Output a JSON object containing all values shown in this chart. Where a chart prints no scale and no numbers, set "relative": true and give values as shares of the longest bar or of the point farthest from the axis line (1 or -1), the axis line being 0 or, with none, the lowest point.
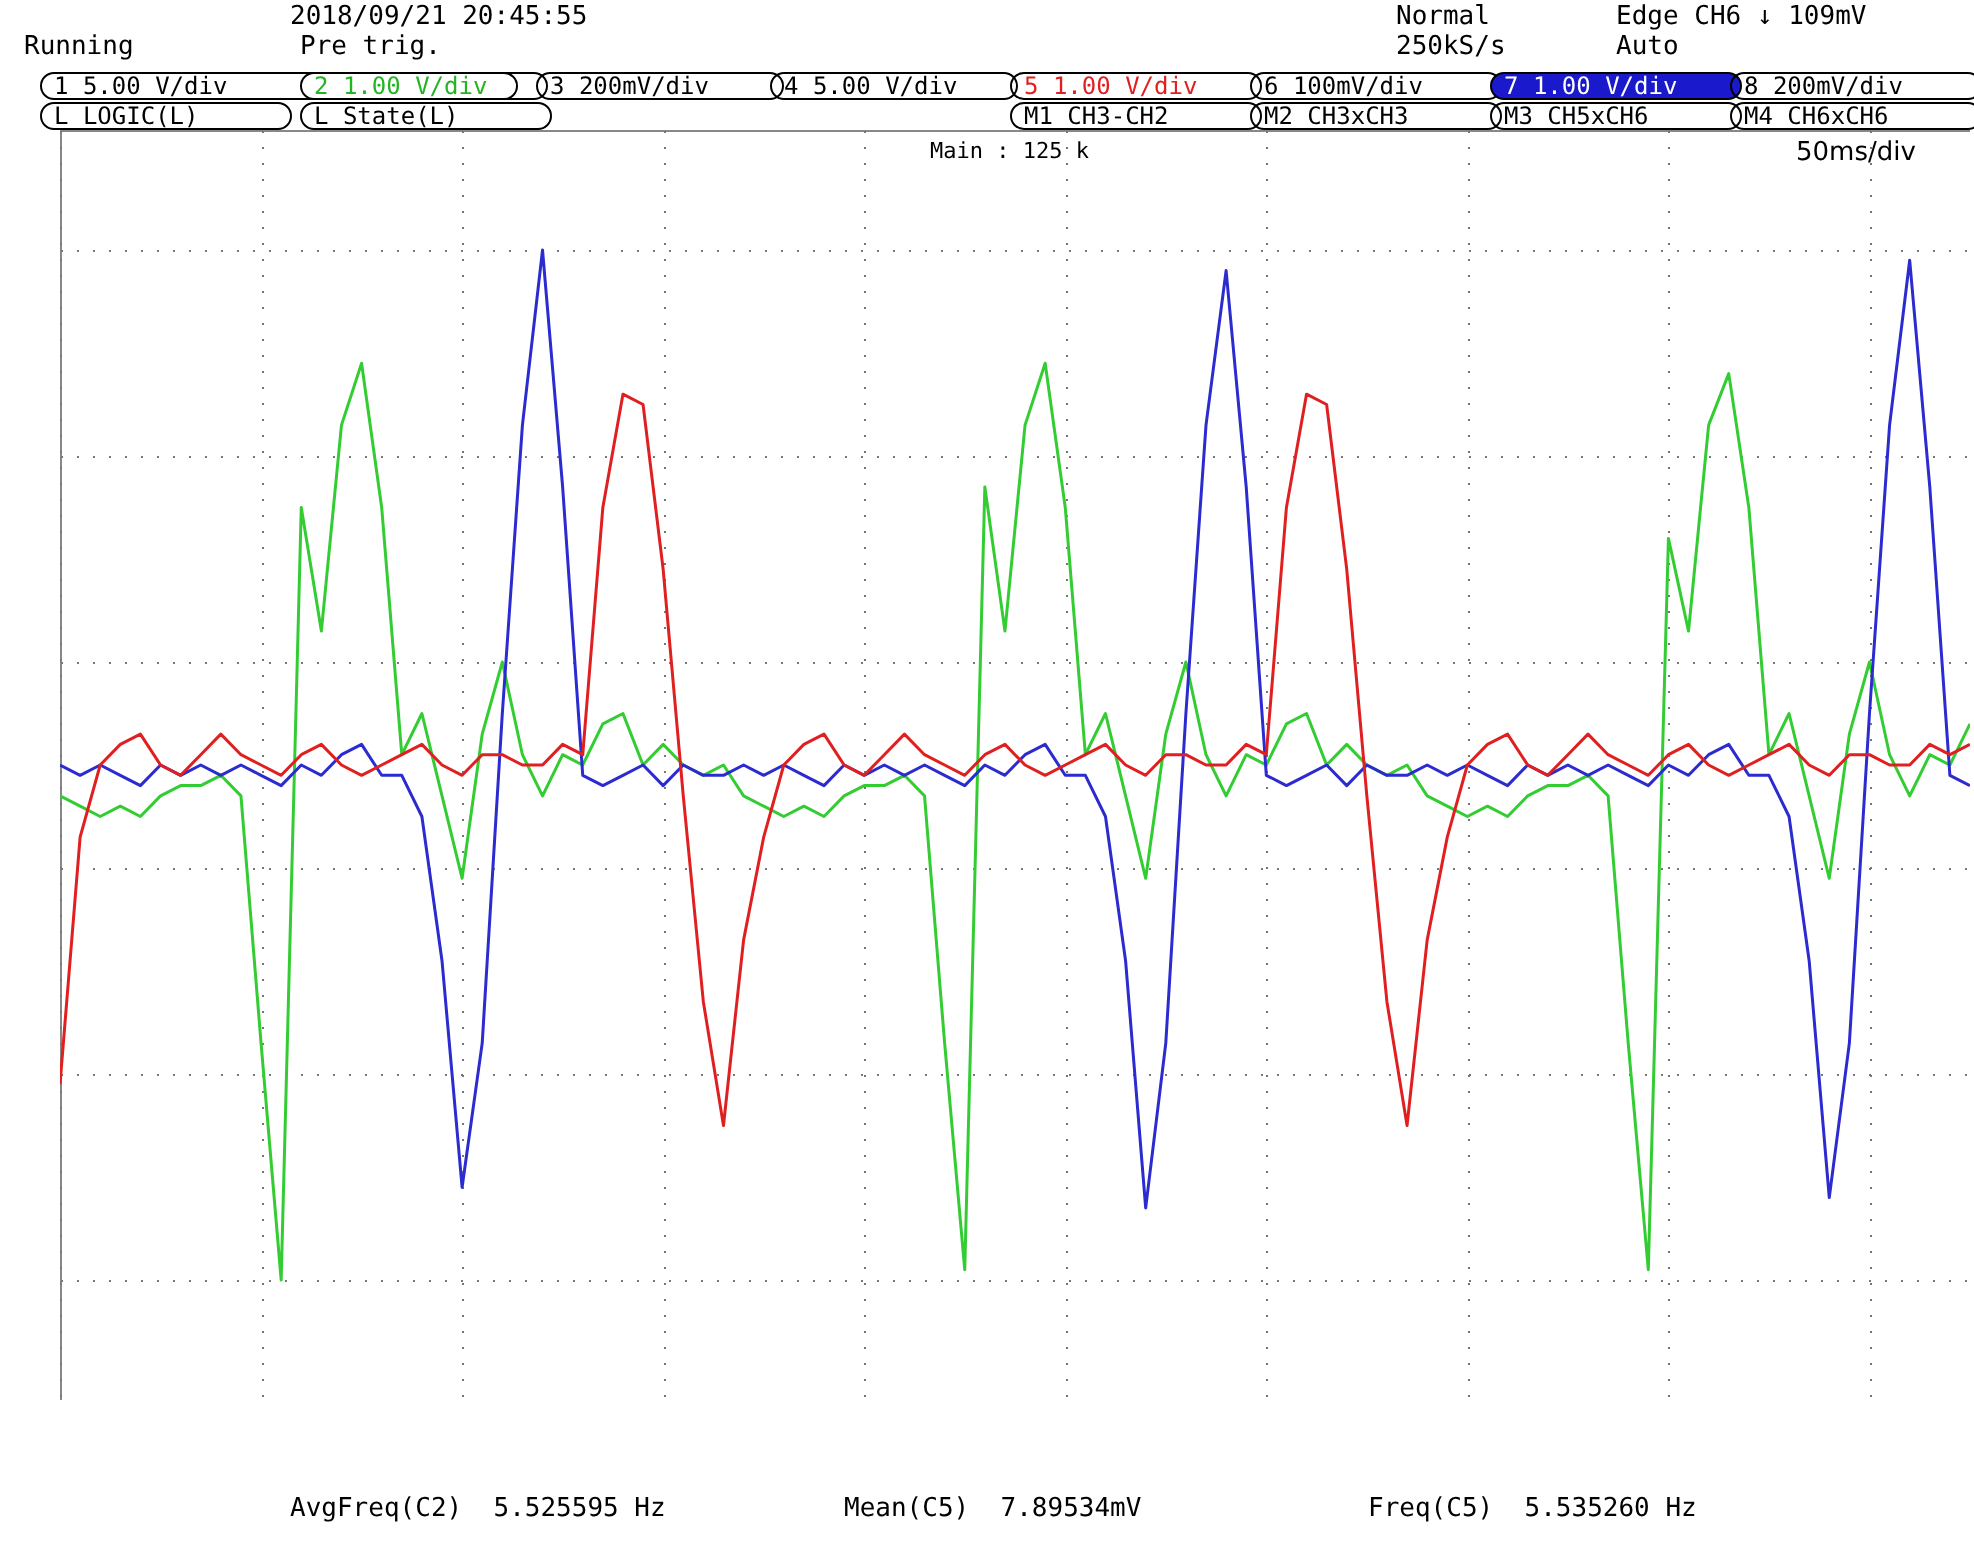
{
  "chart_data": {
    "type": "line",
    "relative": true,
    "grid": true,
    "categories": [
      null,
      null,
      null,
      null,
      null,
      null,
      null,
      null,
      null,
      null,
      null,
      null,
      null,
      null,
      null,
      null,
      null,
      null,
      null,
      null,
      null,
      null,
      null,
      null,
      null,
      null,
      null,
      null,
      null,
      null,
      null,
      null,
      null,
      null,
      null,
      null,
      null,
      null,
      null,
      null,
      null,
      null,
      null,
      null,
      null,
      null,
      null,
      null,
      null,
      null,
      null,
      null,
      null,
      null,
      null,
      null,
      null,
      null,
      null,
      null,
      null,
      null,
      null,
      null,
      null,
      null,
      null,
      null,
      null,
      null,
      null,
      null,
      null,
      null,
      null,
      null,
      null,
      null,
      null,
      null,
      null,
      null,
      null,
      null,
      null,
      null,
      null,
      null,
      null,
      null,
      null,
      null,
      null,
      null,
      null,
      null
    ],
    "series": [
      {
        "color": "#33cc33",
        "values": [
          0.47,
          0.46,
          0.45,
          0.46,
          0.45,
          0.47,
          0.48,
          0.48,
          0.49,
          0.47,
          0.23,
          0,
          0.75,
          0.63,
          0.83,
          0.89,
          0.75,
          0.51,
          0.55,
          0.47,
          0.39,
          0.53,
          0.6,
          0.51,
          0.47,
          0.51,
          0.5,
          0.54,
          0.55,
          0.5,
          0.52,
          0.5,
          0.49,
          0.5,
          0.47,
          0.46,
          0.45,
          0.46,
          0.45,
          0.47,
          0.48,
          0.48,
          0.49,
          0.47,
          0.23,
          0.01,
          0.77,
          0.63,
          0.83,
          0.89,
          0.75,
          0.51,
          0.55,
          0.47,
          0.39,
          0.53,
          0.6,
          0.51,
          0.47,
          0.51,
          0.5,
          0.54,
          0.55,
          0.5,
          0.52,
          0.5,
          0.49,
          0.5,
          0.47,
          0.46,
          0.45,
          0.46,
          0.45,
          0.47,
          0.48,
          0.48,
          0.49,
          0.47,
          0.23,
          0.01,
          0.72,
          0.63,
          0.83,
          0.88,
          0.75,
          0.51,
          0.55,
          0.47,
          0.39,
          0.53,
          0.6,
          0.51,
          0.47,
          0.51,
          0.5,
          0.54
        ]
      },
      {
        "color": "#2b2bd0",
        "values": [
          0.5,
          0.49,
          0.5,
          0.49,
          0.48,
          0.5,
          0.49,
          0.5,
          0.49,
          0.5,
          0.49,
          0.48,
          0.5,
          0.49,
          0.51,
          0.52,
          0.49,
          0.49,
          0.45,
          0.31,
          0.09,
          0.23,
          0.55,
          0.83,
          1,
          0.77,
          0.49,
          0.48,
          0.49,
          0.5,
          0.48,
          0.5,
          0.49,
          0.49,
          0.5,
          0.49,
          0.5,
          0.49,
          0.48,
          0.5,
          0.49,
          0.5,
          0.49,
          0.5,
          0.49,
          0.48,
          0.5,
          0.49,
          0.51,
          0.52,
          0.49,
          0.49,
          0.45,
          0.31,
          0.07,
          0.23,
          0.55,
          0.83,
          0.98,
          0.77,
          0.49,
          0.48,
          0.49,
          0.5,
          0.48,
          0.5,
          0.49,
          0.49,
          0.5,
          0.49,
          0.5,
          0.49,
          0.48,
          0.5,
          0.49,
          0.5,
          0.49,
          0.5,
          0.49,
          0.48,
          0.5,
          0.49,
          0.51,
          0.52,
          0.49,
          0.49,
          0.45,
          0.31,
          0.08,
          0.23,
          0.55,
          0.83,
          0.99,
          0.77,
          0.49,
          0.48
        ]
      },
      {
        "color": "#e02020",
        "values": [
          0.19,
          0.43,
          0.5,
          0.52,
          0.53,
          0.5,
          0.49,
          0.51,
          0.53,
          0.51,
          0.5,
          0.49,
          0.51,
          0.52,
          0.5,
          0.49,
          0.5,
          0.51,
          0.52,
          0.5,
          0.49,
          0.51,
          0.51,
          0.5,
          0.5,
          0.52,
          0.51,
          0.75,
          0.86,
          0.85,
          0.69,
          0.47,
          0.27,
          0.15,
          0.33,
          0.43,
          0.5,
          0.52,
          0.53,
          0.5,
          0.49,
          0.51,
          0.53,
          0.51,
          0.5,
          0.49,
          0.51,
          0.52,
          0.5,
          0.49,
          0.5,
          0.51,
          0.52,
          0.5,
          0.49,
          0.51,
          0.51,
          0.5,
          0.5,
          0.52,
          0.51,
          0.75,
          0.86,
          0.85,
          0.69,
          0.47,
          0.27,
          0.15,
          0.33,
          0.43,
          0.5,
          0.52,
          0.53,
          0.5,
          0.49,
          0.51,
          0.53,
          0.51,
          0.5,
          0.49,
          0.51,
          0.52,
          0.5,
          0.49,
          0.5,
          0.51,
          0.52,
          0.5,
          0.49,
          0.51,
          0.51,
          0.5,
          0.5,
          0.52,
          0.51,
          0.52
        ]
      }
    ],
    "annotations": [
      "2018/09/21 20:45:55",
      "Running",
      "Pre trig.",
      "Normal",
      "250kS/s",
      "Edge CH6 ↓ 109mV",
      "Auto",
      "1 5.00 V/div",
      "2 1.00 V/div",
      "3 200mV/div",
      "4 5.00 V/div",
      "5 1.00 V/div",
      "6 100mV/div",
      "7 1.00 V/div",
      "8 200mV/div",
      "L LOGIC(L)",
      "L State(L)",
      "M1 CH3-CH2",
      "M2 CH3xCH3",
      "M3 CH5xCH6",
      "M4 CH6xCH6",
      "Main : 125 k",
      "50ms/div",
      "AvgFreq(C2)  5.525595 Hz",
      "Mean(C5)  7.89534mV",
      "Freq(C5)  5.535260 Hz"
    ]
  }
}
